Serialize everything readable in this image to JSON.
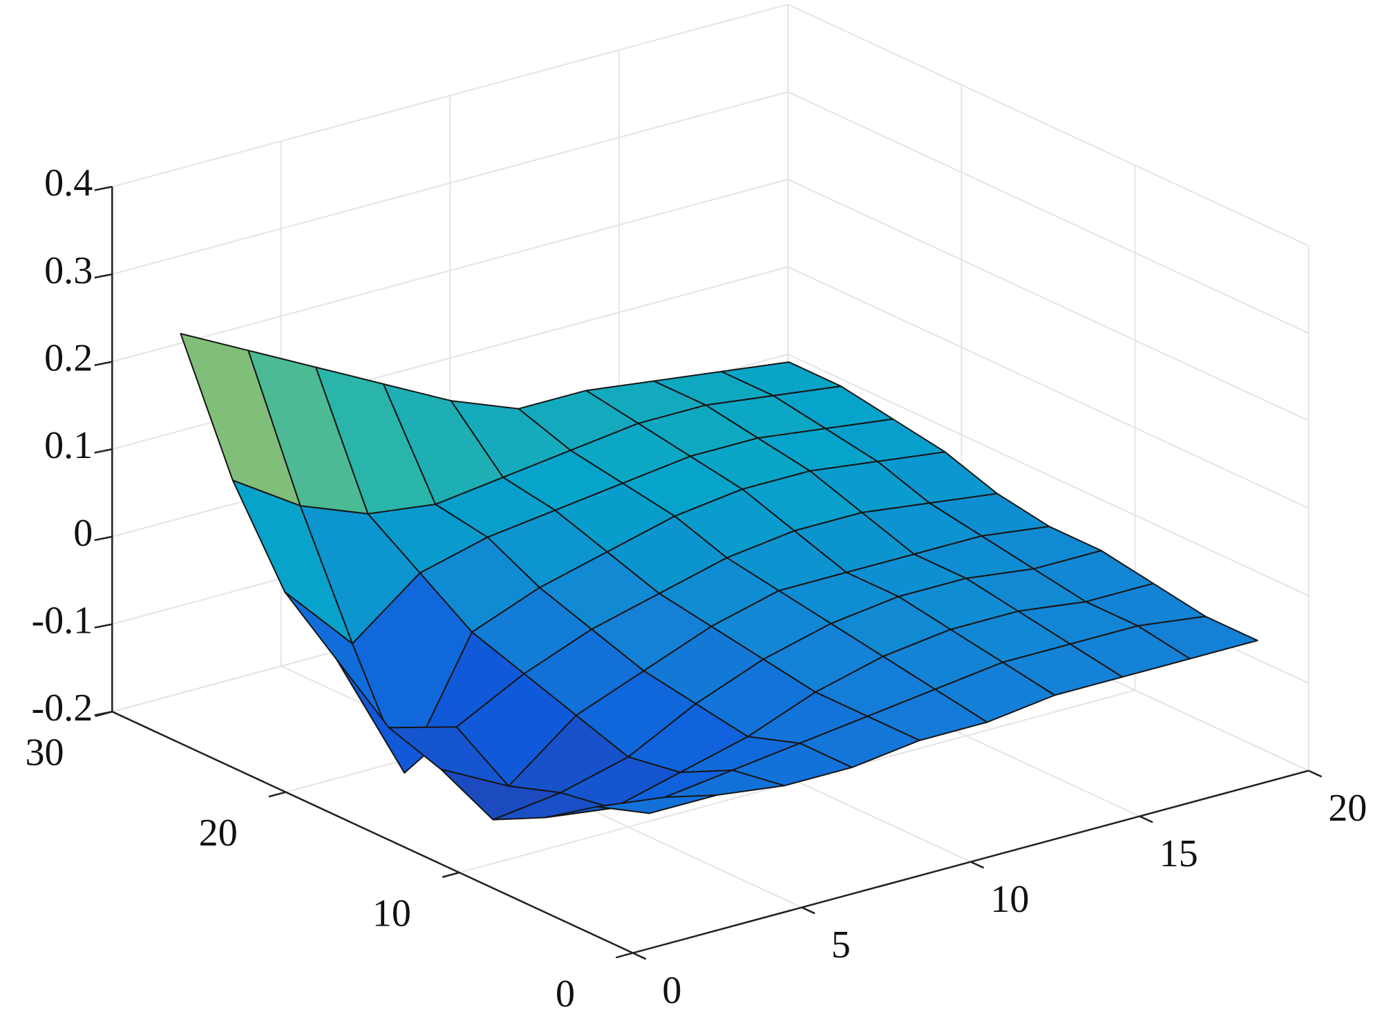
{
  "chart_data": {
    "type": "surface",
    "x": [
      1,
      3,
      5,
      7,
      9,
      11,
      13,
      15,
      17,
      19
    ],
    "y": [
      1,
      4,
      7,
      10,
      13,
      16,
      19,
      22,
      25,
      28
    ],
    "z": [
      [
        -0.06,
        -0.06,
        -0.07,
        -0.07,
        -0.06,
        -0.06,
        -0.05,
        -0.05,
        -0.05,
        -0.05
      ],
      [
        -0.08,
        -0.09,
        -0.08,
        -0.07,
        -0.06,
        -0.05,
        -0.04,
        -0.04,
        -0.04,
        -0.05
      ],
      [
        -0.12,
        -0.13,
        -0.11,
        -0.09,
        -0.06,
        -0.04,
        -0.03,
        -0.03,
        -0.04,
        -0.04
      ],
      [
        -0.15,
        -0.14,
        -0.12,
        -0.08,
        -0.05,
        -0.03,
        -0.02,
        -0.02,
        -0.03,
        -0.03
      ],
      [
        -0.12,
        -0.16,
        -0.1,
        -0.07,
        -0.04,
        -0.02,
        -0.02,
        -0.02,
        -0.02,
        -0.03
      ],
      [
        -0.1,
        -0.12,
        -0.08,
        -0.05,
        -0.03,
        -0.01,
        0,
        0,
        -0.01,
        -0.02
      ],
      [
        -0.05,
        -0.2,
        -0.06,
        -0.03,
        -0.01,
        0.01,
        0.02,
        0.02,
        0.01,
        0
      ],
      [
        0,
        -0.08,
        -0.02,
        0,
        0.01,
        0.02,
        0.03,
        0.03,
        0.02,
        0.01
      ],
      [
        0.1,
        0.05,
        0.02,
        0.01,
        0.02,
        0.03,
        0.04,
        0.04,
        0.03,
        0.02
      ],
      [
        0.24,
        0.2,
        0.16,
        0.12,
        0.08,
        0.05,
        0.05,
        0.04,
        0.03,
        0.02
      ]
    ],
    "xlim": [
      0,
      20
    ],
    "xticks": [
      0,
      5,
      10,
      15,
      20
    ],
    "ylim": [
      0,
      30
    ],
    "yticks": [
      0,
      10,
      20,
      30
    ],
    "zlim": [
      -0.2,
      0.4
    ],
    "zticks": [
      -0.2,
      -0.1,
      0,
      0.1,
      0.2,
      0.3,
      0.4
    ],
    "colormap": "parula",
    "grid": true
  }
}
